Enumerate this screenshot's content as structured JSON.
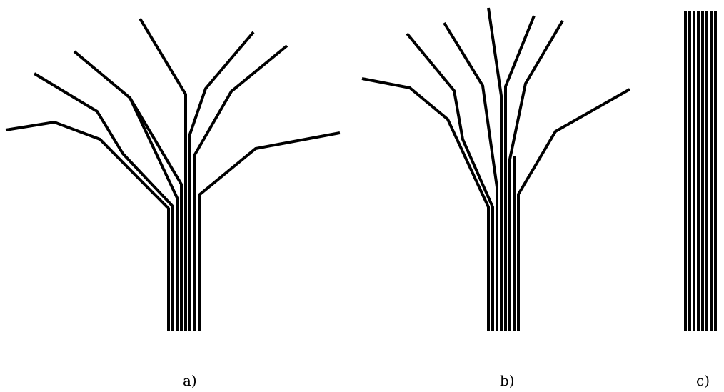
{
  "panels": [
    {
      "label": "a)"
    },
    {
      "label": "b)"
    },
    {
      "label": "c)"
    }
  ],
  "colors": {
    "stroke": "#000000",
    "background": "#ffffff"
  }
}
